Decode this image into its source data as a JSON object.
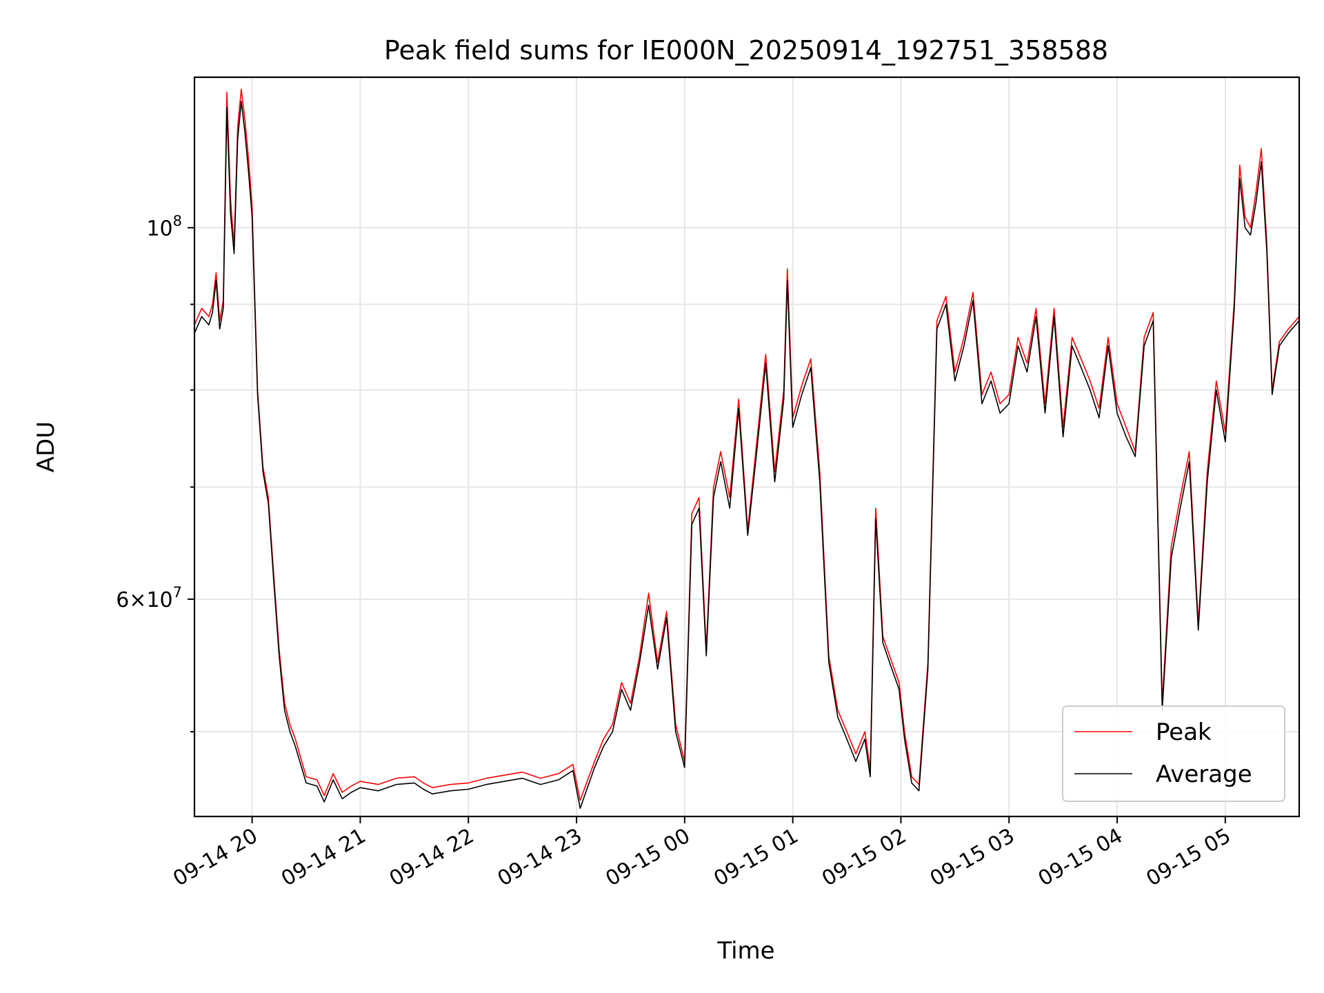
{
  "chart_data": {
    "type": "line",
    "title": "Peak field sums for IE000N_20250914_192751_358588",
    "xlabel": "Time",
    "ylabel": "ADU",
    "yscale": "log",
    "ylim": [
      44500000,
      123000000
    ],
    "xlim": [
      "2025-09-14 19:28",
      "2025-09-15 05:41"
    ],
    "grid": true,
    "legend_position": "lower-right",
    "x_ticks": [
      "2025-09-14 20:00",
      "2025-09-14 21:00",
      "2025-09-14 22:00",
      "2025-09-14 23:00",
      "2025-09-15 00:00",
      "2025-09-15 01:00",
      "2025-09-15 02:00",
      "2025-09-15 03:00",
      "2025-09-15 04:00",
      "2025-09-15 05:00"
    ],
    "x_tick_labels": [
      "09-14 20",
      "09-14 21",
      "09-14 22",
      "09-14 23",
      "09-15 00",
      "09-15 01",
      "09-15 02",
      "09-15 03",
      "09-15 04",
      "09-15 05"
    ],
    "y_major_ticks": [
      {
        "value": 100000000,
        "mantissa": "",
        "base": "10",
        "exp": "8"
      },
      {
        "value": 60000000,
        "mantissa": "6",
        "base": "10",
        "exp": "7"
      }
    ],
    "y_minor_ticks": [
      50000000,
      70000000,
      80000000,
      90000000
    ],
    "series": [
      {
        "name": "Peak",
        "color": "#ff0000",
        "x": [
          "2025-09-14 19:28",
          "2025-09-14 19:32",
          "2025-09-14 19:36",
          "2025-09-14 19:38",
          "2025-09-14 19:40",
          "2025-09-14 19:42",
          "2025-09-14 19:44",
          "2025-09-14 19:46",
          "2025-09-14 19:48",
          "2025-09-14 19:50",
          "2025-09-14 19:52",
          "2025-09-14 19:54",
          "2025-09-14 19:56",
          "2025-09-14 19:58",
          "2025-09-14 20:00",
          "2025-09-14 20:03",
          "2025-09-14 20:06",
          "2025-09-14 20:09",
          "2025-09-14 20:12",
          "2025-09-14 20:15",
          "2025-09-14 20:18",
          "2025-09-14 20:21",
          "2025-09-14 20:24",
          "2025-09-14 20:30",
          "2025-09-14 20:36",
          "2025-09-14 20:40",
          "2025-09-14 20:45",
          "2025-09-14 20:50",
          "2025-09-14 20:55",
          "2025-09-14 21:00",
          "2025-09-14 21:10",
          "2025-09-14 21:20",
          "2025-09-14 21:30",
          "2025-09-14 21:35",
          "2025-09-14 21:40",
          "2025-09-14 21:50",
          "2025-09-14 22:00",
          "2025-09-14 22:10",
          "2025-09-14 22:20",
          "2025-09-14 22:30",
          "2025-09-14 22:40",
          "2025-09-14 22:50",
          "2025-09-14 22:58",
          "2025-09-14 23:02",
          "2025-09-14 23:10",
          "2025-09-14 23:15",
          "2025-09-14 23:20",
          "2025-09-14 23:25",
          "2025-09-14 23:30",
          "2025-09-14 23:35",
          "2025-09-14 23:40",
          "2025-09-14 23:45",
          "2025-09-14 23:50",
          "2025-09-14 23:55",
          "2025-09-15 00:00",
          "2025-09-15 00:04",
          "2025-09-15 00:08",
          "2025-09-15 00:12",
          "2025-09-15 00:16",
          "2025-09-15 00:20",
          "2025-09-15 00:25",
          "2025-09-15 00:30",
          "2025-09-15 00:35",
          "2025-09-15 00:40",
          "2025-09-15 00:45",
          "2025-09-15 00:50",
          "2025-09-15 00:55",
          "2025-09-15 00:57",
          "2025-09-15 01:00",
          "2025-09-15 01:05",
          "2025-09-15 01:10",
          "2025-09-15 01:15",
          "2025-09-15 01:20",
          "2025-09-15 01:25",
          "2025-09-15 01:30",
          "2025-09-15 01:35",
          "2025-09-15 01:40",
          "2025-09-15 01:43",
          "2025-09-15 01:46",
          "2025-09-15 01:50",
          "2025-09-15 01:55",
          "2025-09-15 01:59",
          "2025-09-15 02:02",
          "2025-09-15 02:06",
          "2025-09-15 02:10",
          "2025-09-15 02:15",
          "2025-09-15 02:20",
          "2025-09-15 02:25",
          "2025-09-15 02:30",
          "2025-09-15 02:35",
          "2025-09-15 02:40",
          "2025-09-15 02:45",
          "2025-09-15 02:50",
          "2025-09-15 02:55",
          "2025-09-15 03:00",
          "2025-09-15 03:05",
          "2025-09-15 03:10",
          "2025-09-15 03:15",
          "2025-09-15 03:20",
          "2025-09-15 03:25",
          "2025-09-15 03:30",
          "2025-09-15 03:35",
          "2025-09-15 03:40",
          "2025-09-15 03:45",
          "2025-09-15 03:50",
          "2025-09-15 03:55",
          "2025-09-15 04:00",
          "2025-09-15 04:05",
          "2025-09-15 04:10",
          "2025-09-15 04:15",
          "2025-09-15 04:20",
          "2025-09-15 04:25",
          "2025-09-15 04:30",
          "2025-09-15 04:35",
          "2025-09-15 04:40",
          "2025-09-15 04:45",
          "2025-09-15 04:50",
          "2025-09-15 04:55",
          "2025-09-15 05:00",
          "2025-09-15 05:05",
          "2025-09-15 05:08",
          "2025-09-15 05:11",
          "2025-09-15 05:14",
          "2025-09-15 05:17",
          "2025-09-15 05:20",
          "2025-09-15 05:23",
          "2025-09-15 05:26",
          "2025-09-15 05:30",
          "2025-09-15 05:35",
          "2025-09-15 05:41"
        ],
        "values": [
          87500000,
          89500000,
          88500000,
          90000000,
          94000000,
          88000000,
          90500000,
          120500000,
          104000000,
          97500000,
          115000000,
          121000000,
          116000000,
          110000000,
          103000000,
          80000000,
          72000000,
          69000000,
          62000000,
          56000000,
          52000000,
          50500000,
          49500000,
          47000000,
          46800000,
          45800000,
          47200000,
          46000000,
          46400000,
          46700000,
          46500000,
          46900000,
          47000000,
          46600000,
          46300000,
          46500000,
          46600000,
          46900000,
          47100000,
          47300000,
          46900000,
          47200000,
          47800000,
          45500000,
          48000000,
          49500000,
          50500000,
          53500000,
          52000000,
          55500000,
          60500000,
          55000000,
          59000000,
          50500000,
          48000000,
          67500000,
          69000000,
          56000000,
          70000000,
          73500000,
          69000000,
          79000000,
          66000000,
          74500000,
          84000000,
          71500000,
          80000000,
          94500000,
          77000000,
          80500000,
          83500000,
          71500000,
          55500000,
          51500000,
          50000000,
          48500000,
          50000000,
          47500000,
          68000000,
          57000000,
          55000000,
          53500000,
          50000000,
          47000000,
          46500000,
          55000000,
          88000000,
          91000000,
          82000000,
          86000000,
          91500000,
          79500000,
          82000000,
          78500000,
          79500000,
          86000000,
          83000000,
          89500000,
          78500000,
          89500000,
          76000000,
          86000000,
          83500000,
          81000000,
          78000000,
          86000000,
          78500000,
          76000000,
          73500000,
          86000000,
          89000000,
          52000000,
          64500000,
          69000000,
          73500000,
          58000000,
          71500000,
          81000000,
          75500000,
          90500000,
          109000000,
          101500000,
          100000000,
          105000000,
          111500000,
          98000000,
          80000000,
          85500000,
          87000000,
          88500000
        ]
      },
      {
        "name": "Average",
        "color": "#000000",
        "x": [
          "2025-09-14 19:28",
          "2025-09-14 19:32",
          "2025-09-14 19:36",
          "2025-09-14 19:38",
          "2025-09-14 19:40",
          "2025-09-14 19:42",
          "2025-09-14 19:44",
          "2025-09-14 19:46",
          "2025-09-14 19:48",
          "2025-09-14 19:50",
          "2025-09-14 19:52",
          "2025-09-14 19:54",
          "2025-09-14 19:56",
          "2025-09-14 19:58",
          "2025-09-14 20:00",
          "2025-09-14 20:03",
          "2025-09-14 20:06",
          "2025-09-14 20:09",
          "2025-09-14 20:12",
          "2025-09-14 20:15",
          "2025-09-14 20:18",
          "2025-09-14 20:21",
          "2025-09-14 20:24",
          "2025-09-14 20:30",
          "2025-09-14 20:36",
          "2025-09-14 20:40",
          "2025-09-14 20:45",
          "2025-09-14 20:50",
          "2025-09-14 20:55",
          "2025-09-14 21:00",
          "2025-09-14 21:10",
          "2025-09-14 21:20",
          "2025-09-14 21:30",
          "2025-09-14 21:35",
          "2025-09-14 21:40",
          "2025-09-14 21:50",
          "2025-09-14 22:00",
          "2025-09-14 22:10",
          "2025-09-14 22:20",
          "2025-09-14 22:30",
          "2025-09-14 22:40",
          "2025-09-14 22:50",
          "2025-09-14 22:58",
          "2025-09-14 23:02",
          "2025-09-14 23:10",
          "2025-09-14 23:15",
          "2025-09-14 23:20",
          "2025-09-14 23:25",
          "2025-09-14 23:30",
          "2025-09-14 23:35",
          "2025-09-14 23:40",
          "2025-09-14 23:45",
          "2025-09-14 23:50",
          "2025-09-14 23:55",
          "2025-09-15 00:00",
          "2025-09-15 00:04",
          "2025-09-15 00:08",
          "2025-09-15 00:12",
          "2025-09-15 00:16",
          "2025-09-15 00:20",
          "2025-09-15 00:25",
          "2025-09-15 00:30",
          "2025-09-15 00:35",
          "2025-09-15 00:40",
          "2025-09-15 00:45",
          "2025-09-15 00:50",
          "2025-09-15 00:55",
          "2025-09-15 00:57",
          "2025-09-15 01:00",
          "2025-09-15 01:05",
          "2025-09-15 01:10",
          "2025-09-15 01:15",
          "2025-09-15 01:20",
          "2025-09-15 01:25",
          "2025-09-15 01:30",
          "2025-09-15 01:35",
          "2025-09-15 01:40",
          "2025-09-15 01:43",
          "2025-09-15 01:46",
          "2025-09-15 01:50",
          "2025-09-15 01:55",
          "2025-09-15 01:59",
          "2025-09-15 02:02",
          "2025-09-15 02:06",
          "2025-09-15 02:10",
          "2025-09-15 02:15",
          "2025-09-15 02:20",
          "2025-09-15 02:25",
          "2025-09-15 02:30",
          "2025-09-15 02:35",
          "2025-09-15 02:40",
          "2025-09-15 02:45",
          "2025-09-15 02:50",
          "2025-09-15 02:55",
          "2025-09-15 03:00",
          "2025-09-15 03:05",
          "2025-09-15 03:10",
          "2025-09-15 03:15",
          "2025-09-15 03:20",
          "2025-09-15 03:25",
          "2025-09-15 03:30",
          "2025-09-15 03:35",
          "2025-09-15 03:40",
          "2025-09-15 03:45",
          "2025-09-15 03:50",
          "2025-09-15 03:55",
          "2025-09-15 04:00",
          "2025-09-15 04:05",
          "2025-09-15 04:10",
          "2025-09-15 04:15",
          "2025-09-15 04:20",
          "2025-09-15 04:25",
          "2025-09-15 04:30",
          "2025-09-15 04:35",
          "2025-09-15 04:40",
          "2025-09-15 04:45",
          "2025-09-15 04:50",
          "2025-09-15 04:55",
          "2025-09-15 05:00",
          "2025-09-15 05:05",
          "2025-09-15 05:08",
          "2025-09-15 05:11",
          "2025-09-15 05:14",
          "2025-09-15 05:17",
          "2025-09-15 05:20",
          "2025-09-15 05:23",
          "2025-09-15 05:26",
          "2025-09-15 05:30",
          "2025-09-15 05:35",
          "2025-09-15 05:41"
        ],
        "values": [
          86500000,
          88500000,
          87500000,
          89000000,
          93000000,
          87000000,
          89500000,
          118000000,
          102000000,
          96500000,
          113000000,
          119000000,
          114000000,
          108000000,
          101500000,
          79500000,
          71500000,
          68500000,
          61500000,
          55500000,
          51500000,
          50000000,
          49000000,
          46600000,
          46400000,
          45400000,
          46800000,
          45600000,
          46000000,
          46300000,
          46100000,
          46500000,
          46600000,
          46200000,
          45900000,
          46100000,
          46200000,
          46500000,
          46700000,
          46900000,
          46500000,
          46800000,
          47400000,
          45000000,
          47600000,
          49000000,
          50000000,
          53000000,
          51500000,
          55000000,
          59500000,
          54500000,
          58500000,
          50000000,
          47600000,
          66500000,
          68000000,
          55500000,
          69000000,
          72500000,
          68000000,
          78000000,
          65500000,
          73500000,
          83000000,
          70500000,
          79000000,
          93000000,
          76000000,
          79500000,
          82500000,
          70500000,
          55000000,
          51000000,
          49500000,
          48000000,
          49500000,
          47000000,
          67000000,
          56500000,
          54500000,
          53000000,
          49500000,
          46600000,
          46100000,
          54500000,
          87000000,
          90000000,
          81000000,
          85000000,
          90500000,
          78500000,
          81000000,
          77500000,
          78500000,
          85000000,
          82000000,
          88500000,
          77500000,
          88500000,
          75000000,
          85000000,
          82500000,
          80000000,
          77000000,
          85000000,
          77500000,
          75000000,
          73000000,
          85000000,
          88000000,
          51500000,
          63500000,
          68000000,
          72500000,
          57500000,
          70500000,
          80000000,
          74500000,
          89500000,
          107000000,
          100000000,
          99000000,
          103500000,
          109500000,
          97000000,
          79500000,
          85000000,
          86500000,
          88000000
        ]
      }
    ]
  }
}
